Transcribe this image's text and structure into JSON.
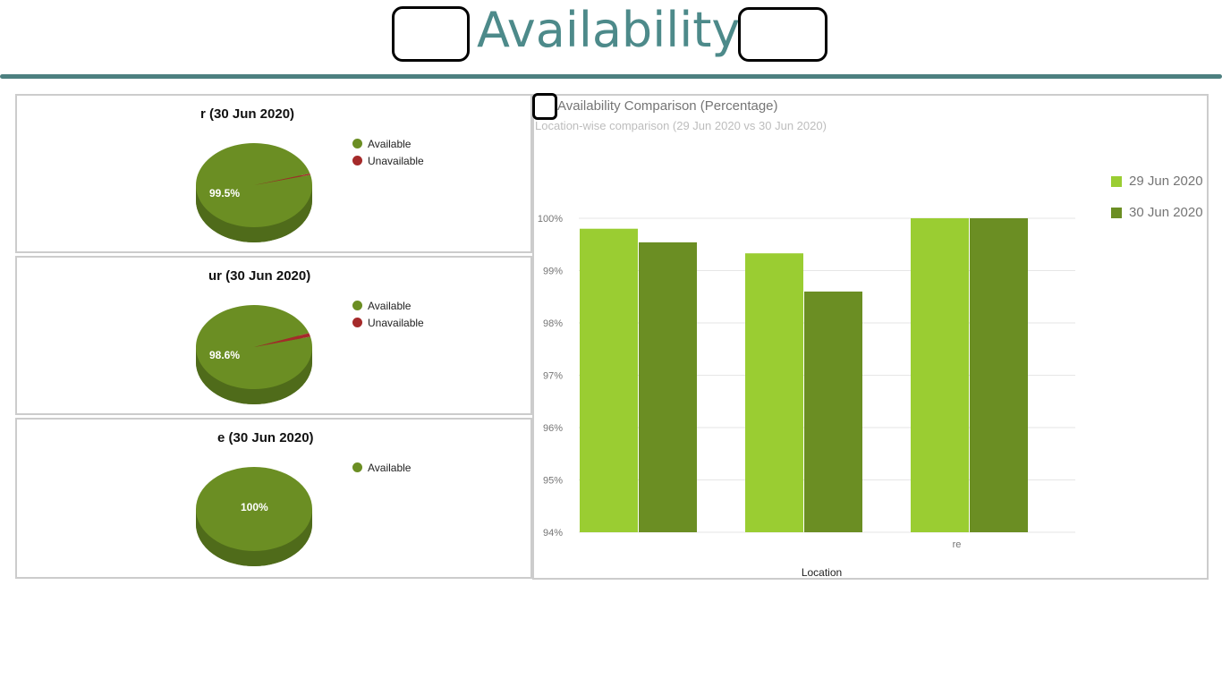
{
  "header": {
    "title": "Availability -"
  },
  "colors": {
    "available": "#6b8e23",
    "unavailable": "#a52a2a",
    "series1": "#9acd32",
    "series2": "#6b8e23",
    "accent": "#4d8a8a"
  },
  "pies": [
    {
      "title": "r (30 Jun 2020)",
      "label": "99.5%",
      "values": {
        "Available": 99.5,
        "Unavailable": 0.5
      },
      "legend": [
        "Available",
        "Unavailable"
      ]
    },
    {
      "title": "ur (30 Jun 2020)",
      "label": "98.6%",
      "values": {
        "Available": 98.6,
        "Unavailable": 1.4
      },
      "legend": [
        "Available",
        "Unavailable"
      ]
    },
    {
      "title": "e (30 Jun 2020)",
      "label": "100%",
      "values": {
        "Available": 100
      },
      "legend": [
        "Available"
      ]
    }
  ],
  "chart_data": {
    "type": "bar",
    "title": "Availability Comparison (Percentage)",
    "subtitle": "Location-wise comparison (29 Jun 2020 vs 30 Jun 2020)",
    "xlabel": "Location",
    "ylabel": "",
    "categories": [
      "",
      "",
      "re"
    ],
    "series": [
      {
        "name": "29 Jun 2020",
        "values": [
          99.8,
          99.33,
          100
        ]
      },
      {
        "name": "30 Jun 2020",
        "values": [
          99.54,
          98.6,
          100
        ]
      }
    ],
    "ylim": [
      94,
      100
    ],
    "yticks": [
      "94%",
      "95%",
      "96%",
      "97%",
      "98%",
      "99%",
      "100%"
    ],
    "grid": true,
    "legend_position": "right"
  }
}
